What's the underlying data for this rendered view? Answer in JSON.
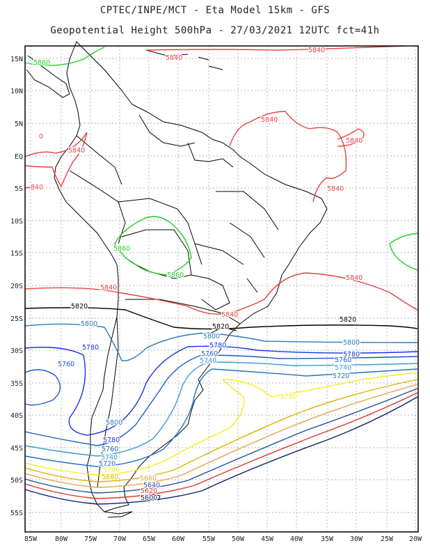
{
  "header": {
    "line1": "CPTEC/INPE/MCT -  Eta Model 15km - GFS",
    "line2": "Geopotential Height 500hPa - 27/03/2021 12UTC fct=41h"
  },
  "axes": {
    "lat_labels": [
      "15N",
      "10N",
      "5N",
      "EQ",
      "5S",
      "10S",
      "15S",
      "20S",
      "25S",
      "30S",
      "35S",
      "40S",
      "45S",
      "50S",
      "55S"
    ],
    "lon_labels": [
      "85W",
      "80W",
      "75W",
      "70W",
      "65W",
      "60W",
      "55W",
      "50W",
      "45W",
      "40W",
      "35W",
      "30W",
      "25W",
      "20W"
    ]
  },
  "colors": {
    "c5580": "#0a1f6e",
    "c5620": "#d83a2c",
    "c5640": "#1f4da0",
    "c5660": "#e0a34a",
    "c5680": "#ddb000",
    "c5700": "#f0f018",
    "c5720": "#1f72c4",
    "c5740": "#3a9ad4",
    "c5760": "#1a58c8",
    "c5780": "#1c30e0",
    "c5800": "#2a7ab8",
    "c5820": "#000000",
    "c5840": "#e84040",
    "c5860": "#22cc22"
  },
  "labels": [
    {
      "text": "5860",
      "color": "c5860",
      "name": "label-5860-nw"
    },
    {
      "text": "5840",
      "color": "c5840",
      "name": "label-5840-top"
    },
    {
      "text": "5840",
      "color": "c5840",
      "name": "label-5840-top-right"
    },
    {
      "text": "5840",
      "color": "c5840",
      "name": "label-5840-guianas"
    },
    {
      "text": "0",
      "color": "c5840",
      "name": "label-0-colombia"
    },
    {
      "text": "5840",
      "color": "c5840",
      "name": "label-5840-colombia"
    },
    {
      "text": "5840",
      "color": "c5840",
      "name": "label-5840-atlantic"
    },
    {
      "text": "840",
      "color": "c5840",
      "name": "label-840-peru"
    },
    {
      "text": "5840",
      "color": "c5840",
      "name": "label-5840-brazil-east"
    },
    {
      "text": "5860",
      "color": "c5860",
      "name": "label-5860-bolivia-w"
    },
    {
      "text": "5860",
      "color": "c5860",
      "name": "label-5860-bolivia-s"
    },
    {
      "text": "5840",
      "color": "c5840",
      "name": "label-5840-chile"
    },
    {
      "text": "5840",
      "color": "c5840",
      "name": "label-5840-east"
    },
    {
      "text": "5840",
      "color": "c5840",
      "name": "label-5840-south-brazil"
    },
    {
      "text": "5820",
      "color": "c5820",
      "name": "label-5820-west"
    },
    {
      "text": "5820",
      "color": "c5820",
      "name": "label-5820-mid"
    },
    {
      "text": "5820",
      "color": "c5820",
      "name": "label-5820-east"
    },
    {
      "text": "5800",
      "color": "c5800",
      "name": "label-5800-west"
    },
    {
      "text": "5800",
      "color": "c5800",
      "name": "label-5800-uruguay"
    },
    {
      "text": "5800",
      "color": "c5800",
      "name": "label-5800-east"
    },
    {
      "text": "5780",
      "color": "c5780",
      "name": "label-5780-west"
    },
    {
      "text": "5780",
      "color": "c5780",
      "name": "label-5780-mid"
    },
    {
      "text": "5780",
      "color": "c5780",
      "name": "label-5780-east"
    },
    {
      "text": "5760",
      "color": "c5760",
      "name": "label-5760-pacific"
    },
    {
      "text": "5760",
      "color": "c5760",
      "name": "label-5760-mid"
    },
    {
      "text": "5760",
      "color": "c5760",
      "name": "label-5760-east"
    },
    {
      "text": "5740",
      "color": "c5740",
      "name": "label-5740-mid"
    },
    {
      "text": "5740",
      "color": "c5740",
      "name": "label-5740-east"
    },
    {
      "text": "5720",
      "color": "c5720",
      "name": "label-5720-east"
    },
    {
      "text": "5700",
      "color": "c5700",
      "name": "label-5700-east"
    },
    {
      "text": "5800",
      "color": "c5800",
      "name": "label-5800-patagonia"
    },
    {
      "text": "5780",
      "color": "c5780",
      "name": "label-5780-patagonia"
    },
    {
      "text": "5760",
      "color": "c5760",
      "name": "label-5760-patagonia"
    },
    {
      "text": "5740",
      "color": "c5740",
      "name": "label-5740-patagonia"
    },
    {
      "text": "5720",
      "color": "c5720",
      "name": "label-5720-patagonia"
    },
    {
      "text": "5700",
      "color": "c5700",
      "name": "label-5700-patagonia"
    },
    {
      "text": "5680",
      "color": "c5680",
      "name": "label-5680-patagonia"
    },
    {
      "text": "5660",
      "color": "c5660",
      "name": "label-5660-south"
    },
    {
      "text": "5640",
      "color": "c5640",
      "name": "label-5640-south"
    },
    {
      "text": "5620",
      "color": "c5620",
      "name": "label-5620-south"
    },
    {
      "text": "5600",
      "color": "c5580",
      "name": "label-5600-south"
    }
  ]
}
